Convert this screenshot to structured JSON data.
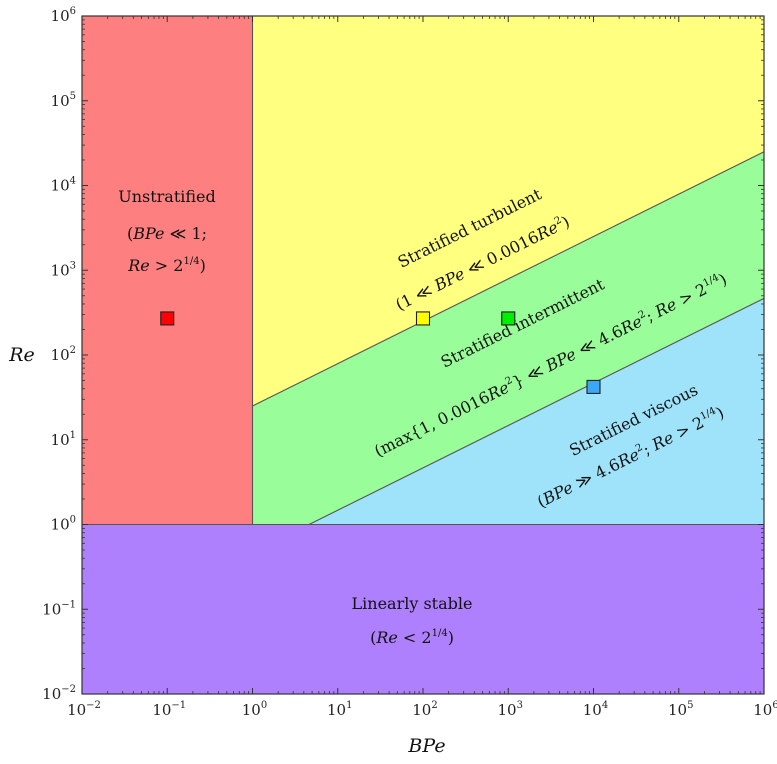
{
  "chart_data": {
    "type": "regime-diagram",
    "xlabel": "BPe",
    "ylabel": "Re",
    "x_scale": "log",
    "y_scale": "log",
    "xlim": [
      "10^-2",
      "10^6"
    ],
    "ylim": [
      "10^-2",
      "10^6"
    ],
    "x_ticks": [
      {
        "base": "10",
        "exp": "−2"
      },
      {
        "base": "10",
        "exp": "−1"
      },
      {
        "base": "10",
        "exp": "0"
      },
      {
        "base": "10",
        "exp": "1"
      },
      {
        "base": "10",
        "exp": "2"
      },
      {
        "base": "10",
        "exp": "3"
      },
      {
        "base": "10",
        "exp": "4"
      },
      {
        "base": "10",
        "exp": "5"
      },
      {
        "base": "10",
        "exp": "6"
      }
    ],
    "y_ticks": [
      {
        "base": "10",
        "exp": "−2"
      },
      {
        "base": "10",
        "exp": "−1"
      },
      {
        "base": "10",
        "exp": "0"
      },
      {
        "base": "10",
        "exp": "1"
      },
      {
        "base": "10",
        "exp": "2"
      },
      {
        "base": "10",
        "exp": "3"
      },
      {
        "base": "10",
        "exp": "4"
      },
      {
        "base": "10",
        "exp": "5"
      },
      {
        "base": "10",
        "exp": "6"
      }
    ],
    "boundaries": [
      {
        "name": "Re = 1",
        "form": "horizontal",
        "value": 1
      },
      {
        "name": "BPe = 1",
        "form": "vertical",
        "value": 1
      },
      {
        "name": "BPe = 0.0016Re^2",
        "coef": 0.0016
      },
      {
        "name": "BPe = 4.6Re^2",
        "coef": 4.6
      }
    ],
    "regions": [
      {
        "id": "unstratified",
        "color": "#fd7f7f",
        "lines": [
          [
            {
              "t": "Unstratified"
            }
          ],
          [
            {
              "t": "("
            },
            {
              "t": "BPe",
              "i": true
            },
            {
              "t": " ≪ 1;"
            }
          ],
          [
            {
              "t": "Re",
              "i": true
            },
            {
              "t": " > 2"
            },
            {
              "t": "1/4",
              "s": true
            },
            {
              "t": ")"
            }
          ]
        ]
      },
      {
        "id": "stratified-turbulent",
        "color": "#ffff80",
        "lines": [
          [
            {
              "t": "Stratified turbulent"
            }
          ],
          [
            {
              "t": "(1 ≪ "
            },
            {
              "t": "BPe",
              "i": true
            },
            {
              "t": " ≪ 0.0016"
            },
            {
              "t": "Re",
              "i": true
            },
            {
              "t": "2",
              "s": true
            },
            {
              "t": ")"
            }
          ]
        ]
      },
      {
        "id": "stratified-intermittent",
        "color": "#99fd99",
        "lines": [
          [
            {
              "t": "Stratified intermittent"
            }
          ],
          [
            {
              "t": "(max{1, 0.0016"
            },
            {
              "t": "Re",
              "i": true
            },
            {
              "t": "2",
              "s": true
            },
            {
              "t": "} ≪ "
            },
            {
              "t": "BPe",
              "i": true
            },
            {
              "t": " ≪ 4.6"
            },
            {
              "t": "Re",
              "i": true
            },
            {
              "t": "2",
              "s": true
            },
            {
              "t": "; "
            },
            {
              "t": "Re",
              "i": true
            },
            {
              "t": " > 2"
            },
            {
              "t": "1/4",
              "s": true
            },
            {
              "t": ")"
            }
          ]
        ]
      },
      {
        "id": "stratified-viscous",
        "color": "#9fe3fb",
        "lines": [
          [
            {
              "t": "Stratified viscous"
            }
          ],
          [
            {
              "t": "("
            },
            {
              "t": "BPe",
              "i": true
            },
            {
              "t": " ≫ 4.6"
            },
            {
              "t": "Re",
              "i": true
            },
            {
              "t": "2",
              "s": true
            },
            {
              "t": "; "
            },
            {
              "t": "Re",
              "i": true
            },
            {
              "t": " > 2"
            },
            {
              "t": "1/4",
              "s": true
            },
            {
              "t": ")"
            }
          ]
        ]
      },
      {
        "id": "linearly-stable",
        "color": "#af80fd",
        "lines": [
          [
            {
              "t": "Linearly stable"
            }
          ],
          [
            {
              "t": "("
            },
            {
              "t": "Re",
              "i": true
            },
            {
              "t": " < 2"
            },
            {
              "t": "1/4",
              "s": true
            },
            {
              "t": ")"
            }
          ]
        ]
      }
    ],
    "points": [
      {
        "name": "unstratified-marker",
        "x": 0.1,
        "y": 270,
        "color": "#ff0000"
      },
      {
        "name": "turbulent-marker",
        "x": 100,
        "y": 270,
        "color": "#ffff00"
      },
      {
        "name": "intermittent-marker",
        "x": 1000,
        "y": 270,
        "color": "#00ee00"
      },
      {
        "name": "viscous-marker",
        "x": 10000,
        "y": 42,
        "color": "#3ba8f5"
      }
    ],
    "grid": false,
    "legend": "none"
  }
}
